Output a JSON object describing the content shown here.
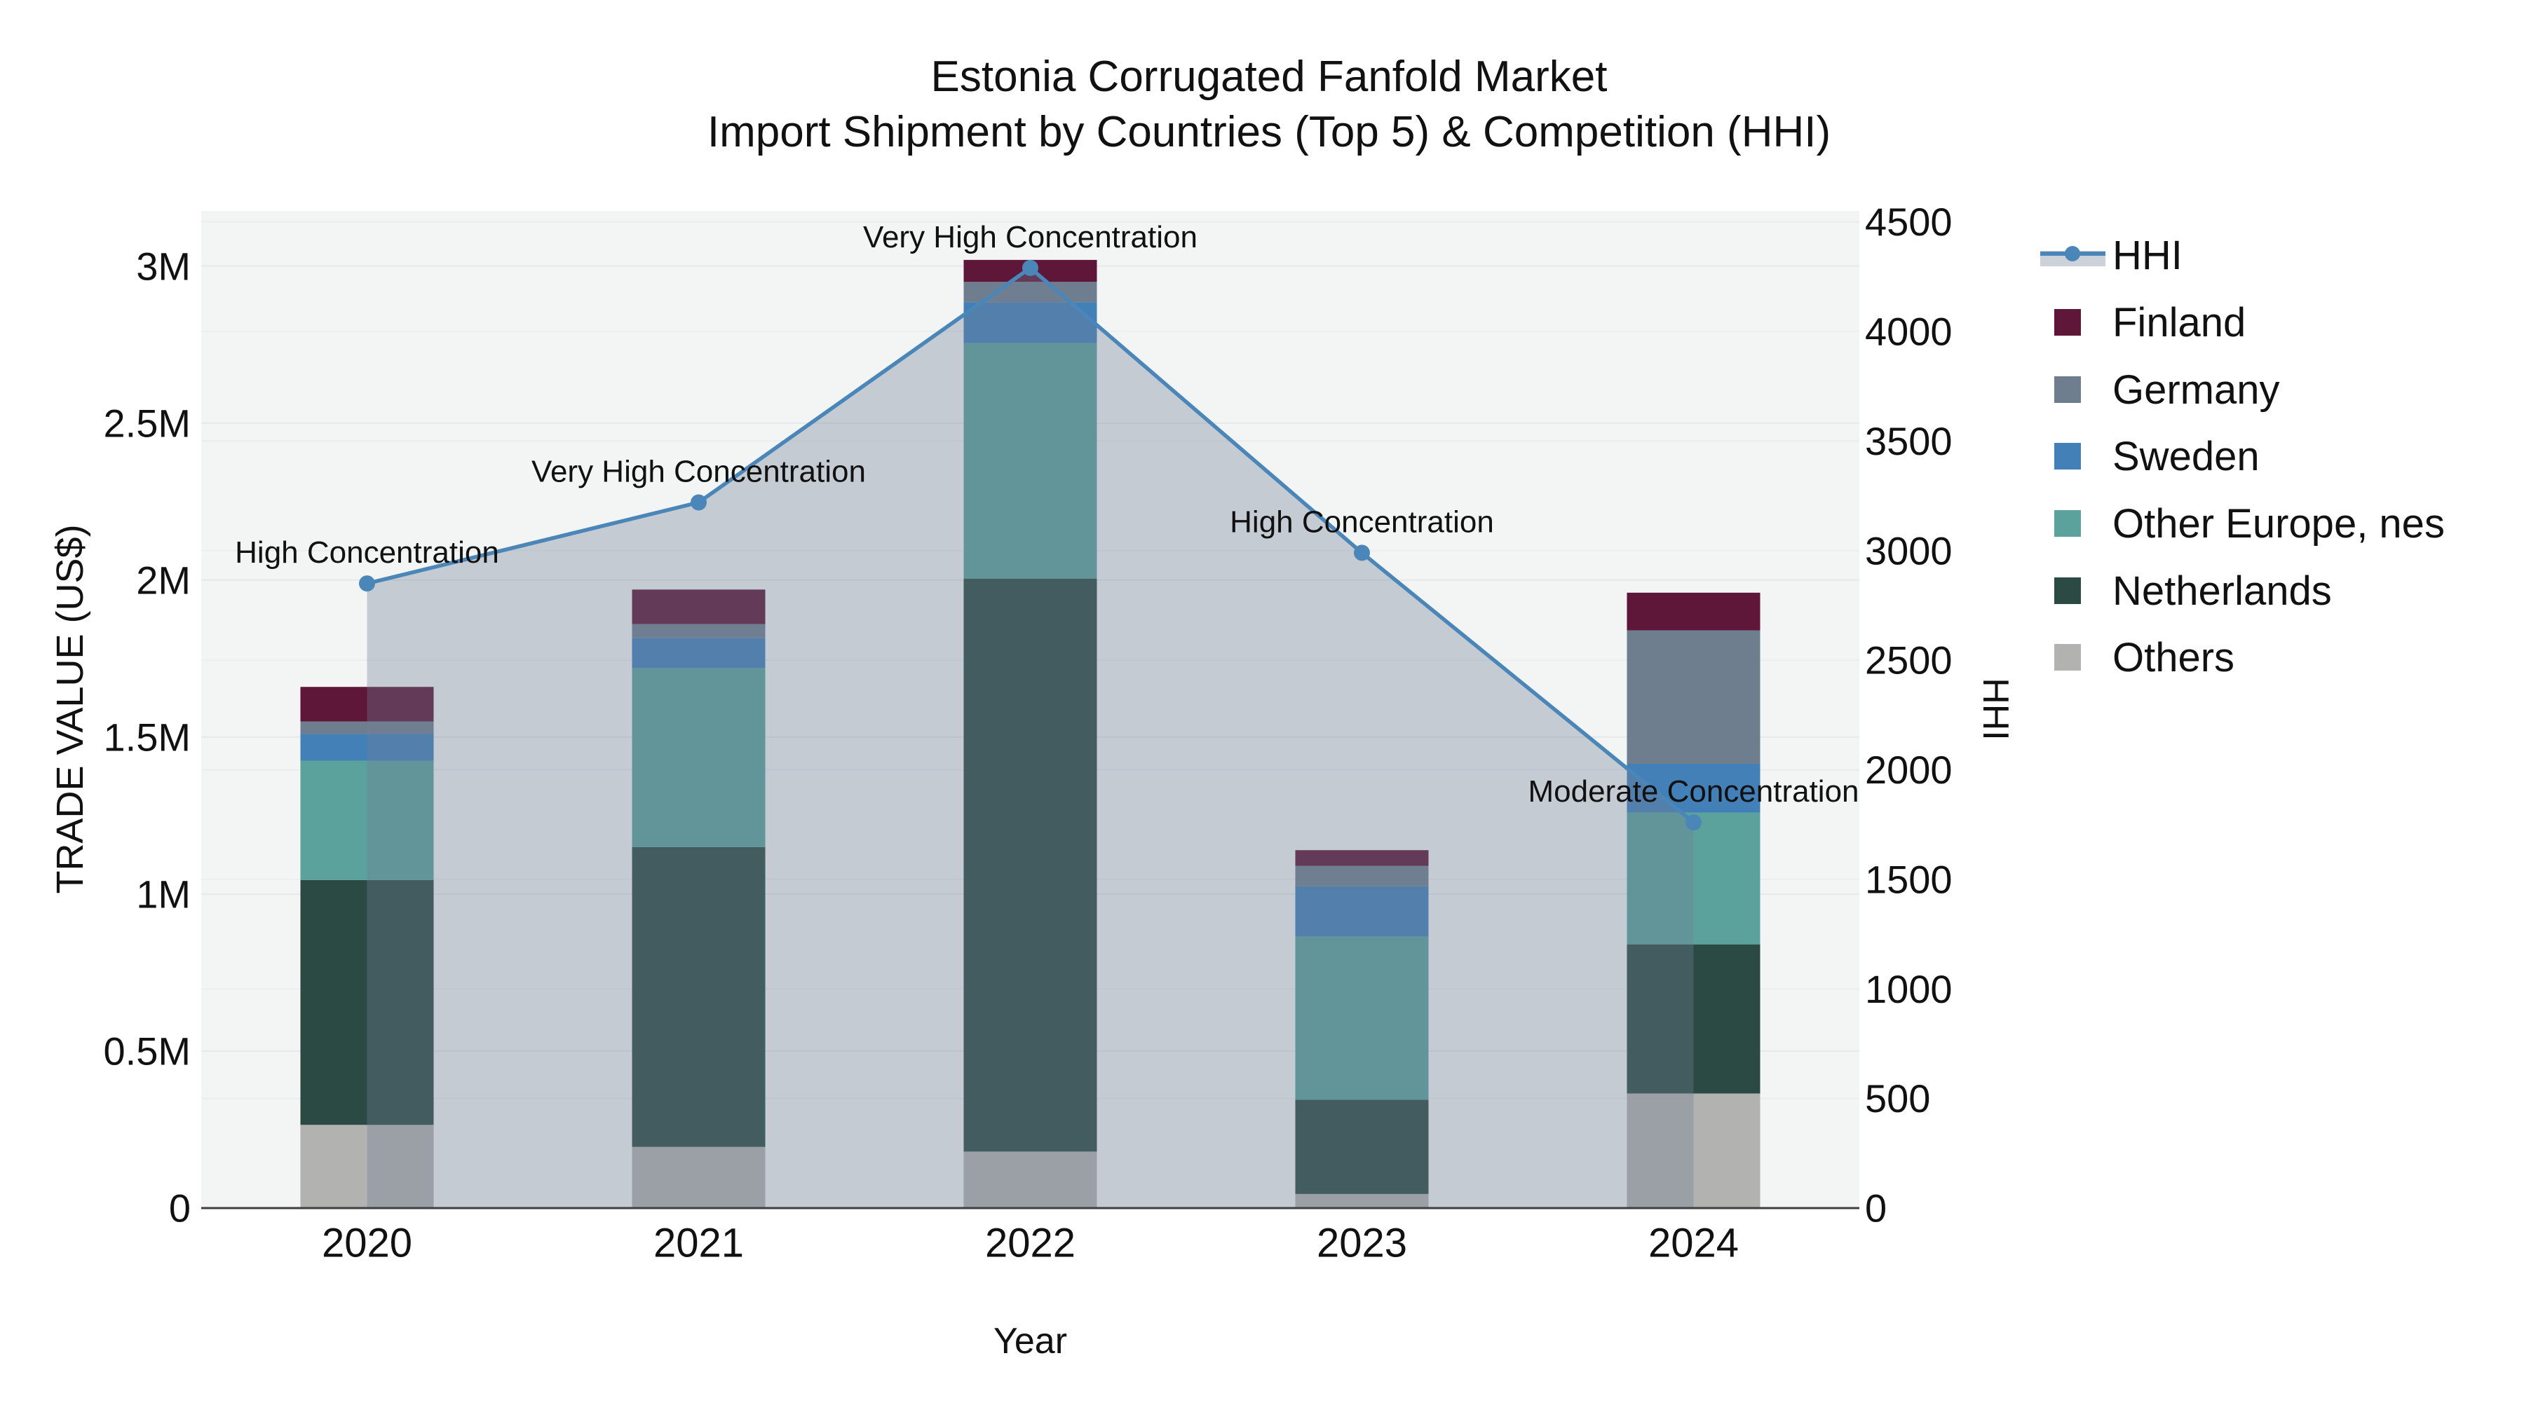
{
  "title": {
    "line1": "Estonia Corrugated Fanfold Market",
    "line2": "Import Shipment by Countries (Top 5) & Competition (HHI)"
  },
  "chart_data": {
    "type": "stacked-bar+line",
    "categories": [
      "2020",
      "2021",
      "2022",
      "2023",
      "2024"
    ],
    "x_axis_title": "Year",
    "y_left": {
      "title": "TRADE VALUE (US$)",
      "tick_labels": [
        "0",
        "0.5M",
        "1M",
        "1.5M",
        "2M",
        "2.5M",
        "3M"
      ],
      "tick_values": [
        0,
        500000,
        1000000,
        1500000,
        2000000,
        2500000,
        3000000
      ],
      "range": [
        0,
        3176000
      ]
    },
    "y_right": {
      "title": "HHI",
      "tick_labels": [
        "0",
        "500",
        "1000",
        "1500",
        "2000",
        "2500",
        "3000",
        "3500",
        "4000",
        "4500"
      ],
      "tick_values": [
        0,
        500,
        1000,
        1500,
        2000,
        2500,
        3000,
        3500,
        4000,
        4500
      ],
      "range": [
        0,
        4550
      ]
    },
    "series": [
      {
        "name": "Others",
        "color": "#b2b2b0",
        "values": [
          265000,
          195000,
          180000,
          45000,
          365000
        ]
      },
      {
        "name": "Netherlands",
        "color": "#2c4a44",
        "values": [
          780000,
          955000,
          1825000,
          300000,
          475000
        ]
      },
      {
        "name": "Other Europe, nes",
        "color": "#5ba19c",
        "values": [
          380000,
          570000,
          750000,
          520000,
          420000
        ]
      },
      {
        "name": "Sweden",
        "color": "#4380b8",
        "values": [
          85000,
          95000,
          130000,
          160000,
          155000
        ]
      },
      {
        "name": "Germany",
        "color": "#6f7e8f",
        "values": [
          40000,
          45000,
          65000,
          65000,
          425000
        ]
      },
      {
        "name": "Finland",
        "color": "#5e1639",
        "values": [
          110000,
          110000,
          70000,
          50000,
          120000
        ]
      }
    ],
    "hhi": {
      "name": "HHI",
      "color": "#4a86b8",
      "fill_color": "rgba(112,125,150,0.35)",
      "values": [
        2850,
        3220,
        4290,
        2990,
        1760
      ],
      "annotations": [
        "High Concentration",
        "Very High Concentration",
        "Very High Concentration",
        "High Concentration",
        "Moderate Concentration"
      ]
    },
    "grid": true,
    "legend_position": "right"
  },
  "legend": {
    "items": [
      {
        "label": "HHI",
        "type": "line",
        "color": "#4a86b8"
      },
      {
        "label": "Finland",
        "type": "swatch",
        "color": "#5e1639"
      },
      {
        "label": "Germany",
        "type": "swatch",
        "color": "#6f7e8f"
      },
      {
        "label": "Sweden",
        "type": "swatch",
        "color": "#4380b8"
      },
      {
        "label": "Other Europe, nes",
        "type": "swatch",
        "color": "#5ba19c"
      },
      {
        "label": "Netherlands",
        "type": "swatch",
        "color": "#2c4a44"
      },
      {
        "label": "Others",
        "type": "swatch",
        "color": "#b2b2b0"
      }
    ]
  },
  "colors": {
    "background": "#ffffff",
    "plot_bg": "#f3f4f4",
    "grid_left": "#e6e8e9",
    "grid_right": "#ecedee",
    "axis_line": "#3f3f3f",
    "text": "#111111"
  }
}
